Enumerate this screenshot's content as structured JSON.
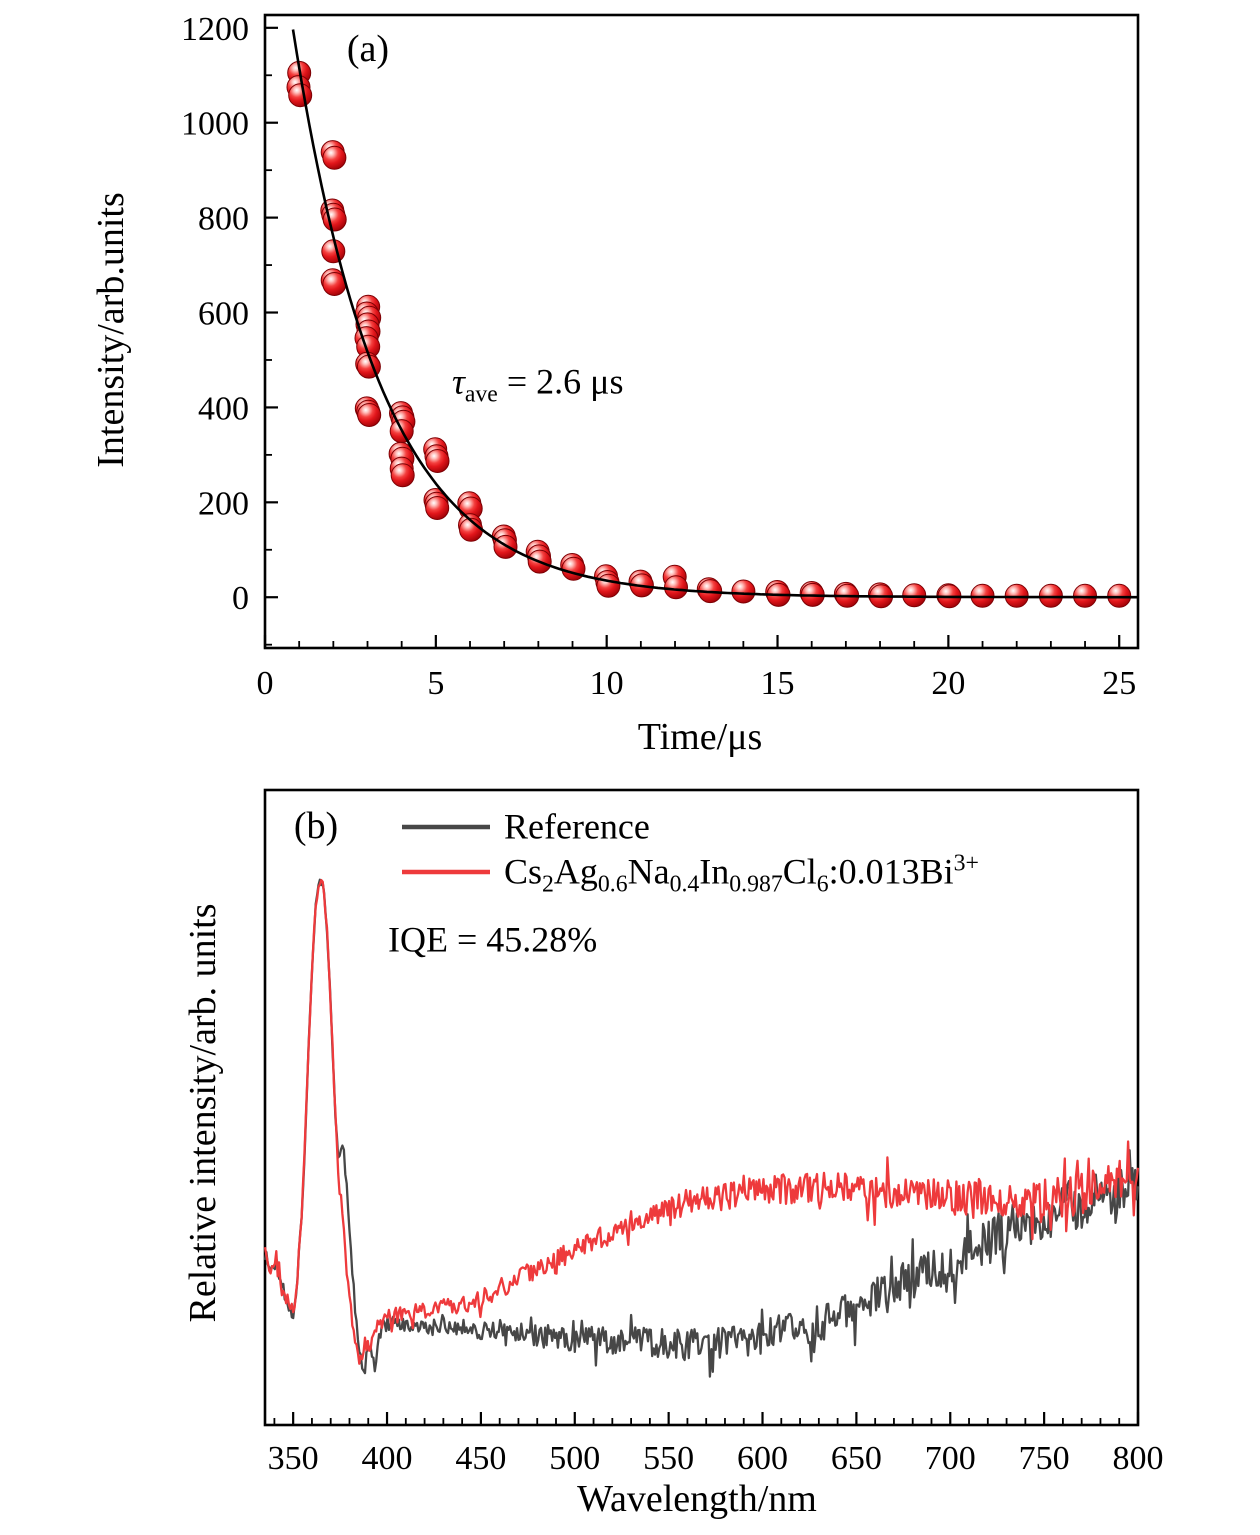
{
  "page": {
    "background": "#ffffff"
  },
  "chart_data": [
    {
      "id": "decay",
      "type": "scatter",
      "panel_label": "(a)",
      "xlabel": "Time/μs",
      "ylabel": "Intensity/arb.units",
      "xlim": [
        0,
        25.55
      ],
      "ylim": [
        -107,
        1227
      ],
      "x_major_ticks": [
        0,
        5,
        10,
        15,
        20,
        25
      ],
      "x_minor_step": 1,
      "y_major_ticks": [
        0,
        200,
        400,
        600,
        800,
        1000,
        1200
      ],
      "y_minor_step": 100,
      "grid": false,
      "annotation_tokens": [
        [
          "τ",
          "i"
        ],
        [
          "ave",
          "s"
        ],
        [
          " = 2.6 μs",
          "n"
        ]
      ],
      "annotation_plain": "tau_ave = 2.6 us",
      "marker_color": "#e2161b",
      "fit": {
        "A": 1640,
        "tau": 2.6,
        "color": "#000000"
      },
      "points": [
        [
          1.0,
          1105
        ],
        [
          0.98,
          1075
        ],
        [
          1.03,
          1058
        ],
        [
          1.98,
          938
        ],
        [
          2.03,
          926
        ],
        [
          1.97,
          815
        ],
        [
          2.0,
          806
        ],
        [
          2.04,
          796
        ],
        [
          2.0,
          729
        ],
        [
          1.98,
          668
        ],
        [
          2.03,
          660
        ],
        [
          3.02,
          612
        ],
        [
          2.98,
          598
        ],
        [
          3.05,
          589
        ],
        [
          3.0,
          575
        ],
        [
          3.03,
          560
        ],
        [
          2.97,
          546
        ],
        [
          3.02,
          528
        ],
        [
          2.99,
          492
        ],
        [
          3.04,
          486
        ],
        [
          2.98,
          398
        ],
        [
          3.02,
          391
        ],
        [
          3.05,
          384
        ],
        [
          3.98,
          388
        ],
        [
          4.02,
          379
        ],
        [
          4.05,
          370
        ],
        [
          4.0,
          350
        ],
        [
          3.97,
          302
        ],
        [
          4.02,
          292
        ],
        [
          4.0,
          271
        ],
        [
          4.03,
          257
        ],
        [
          4.98,
          312
        ],
        [
          5.02,
          297
        ],
        [
          5.05,
          287
        ],
        [
          4.99,
          205
        ],
        [
          5.02,
          197
        ],
        [
          5.04,
          188
        ],
        [
          5.98,
          198
        ],
        [
          6.02,
          187
        ],
        [
          6.0,
          152
        ],
        [
          6.03,
          142
        ],
        [
          6.99,
          128
        ],
        [
          7.02,
          120
        ],
        [
          7.04,
          106
        ],
        [
          7.98,
          96
        ],
        [
          8.02,
          86
        ],
        [
          8.04,
          75
        ],
        [
          8.99,
          68
        ],
        [
          9.03,
          60
        ],
        [
          9.98,
          44
        ],
        [
          10.02,
          32
        ],
        [
          10.05,
          24
        ],
        [
          10.99,
          33
        ],
        [
          11.03,
          25
        ],
        [
          11.99,
          43
        ],
        [
          12.03,
          21
        ],
        [
          12.99,
          17
        ],
        [
          13.03,
          13
        ],
        [
          14.0,
          12
        ],
        [
          14.99,
          11
        ],
        [
          15.03,
          5
        ],
        [
          16.0,
          9
        ],
        [
          16.03,
          5
        ],
        [
          17.0,
          7
        ],
        [
          17.04,
          3
        ],
        [
          18.0,
          6
        ],
        [
          18.03,
          2
        ],
        [
          19.0,
          4
        ],
        [
          20.0,
          4
        ],
        [
          20.03,
          2
        ],
        [
          21.0,
          3
        ],
        [
          22.0,
          3
        ],
        [
          23.0,
          3
        ],
        [
          24.0,
          3
        ],
        [
          25.0,
          3
        ]
      ]
    },
    {
      "id": "spectra",
      "type": "line",
      "panel_label": "(b)",
      "xlabel": "Wavelength/nm",
      "ylabel": "Relative intensity/arb. units",
      "xlim": [
        335,
        800
      ],
      "ylim": [
        0,
        1
      ],
      "x_major_ticks": [
        350,
        400,
        450,
        500,
        550,
        600,
        650,
        700,
        750,
        800
      ],
      "x_minor_step": 10,
      "y_ticks_visible": false,
      "grid": false,
      "annotation": "IQE = 45.28%",
      "legend_position": "top-left-inside",
      "series": [
        {
          "name": "Reference",
          "label_tokens": [
            [
              "Reference",
              "n"
            ]
          ],
          "color": "#474747",
          "noise": {
            "seed": 1337,
            "base": 0.012,
            "grow": 0.032
          },
          "anchors": [
            [
              335,
              0.27
            ],
            [
              338,
              0.24
            ],
            [
              341,
              0.26
            ],
            [
              344,
              0.22
            ],
            [
              347,
              0.2
            ],
            [
              350,
              0.18
            ],
            [
              352,
              0.22
            ],
            [
              354,
              0.3
            ],
            [
              356,
              0.42
            ],
            [
              358,
              0.58
            ],
            [
              360,
              0.72
            ],
            [
              362,
              0.82
            ],
            [
              364,
              0.855
            ],
            [
              366,
              0.85
            ],
            [
              368,
              0.78
            ],
            [
              370,
              0.66
            ],
            [
              372,
              0.52
            ],
            [
              374,
              0.42
            ],
            [
              376,
              0.44
            ],
            [
              378,
              0.4
            ],
            [
              380,
              0.3
            ],
            [
              382,
              0.22
            ],
            [
              384,
              0.15
            ],
            [
              386,
              0.1
            ],
            [
              388,
              0.08
            ],
            [
              390,
              0.14
            ],
            [
              392,
              0.1
            ],
            [
              394,
              0.09
            ],
            [
              396,
              0.14
            ],
            [
              398,
              0.16
            ],
            [
              400,
              0.16
            ],
            [
              410,
              0.155
            ],
            [
              420,
              0.15
            ],
            [
              430,
              0.16
            ],
            [
              440,
              0.155
            ],
            [
              450,
              0.15
            ],
            [
              460,
              0.15
            ],
            [
              470,
              0.145
            ],
            [
              480,
              0.14
            ],
            [
              490,
              0.14
            ],
            [
              500,
              0.135
            ],
            [
              510,
              0.135
            ],
            [
              520,
              0.13
            ],
            [
              530,
              0.135
            ],
            [
              540,
              0.13
            ],
            [
              550,
              0.13
            ],
            [
              560,
              0.125
            ],
            [
              570,
              0.13
            ],
            [
              580,
              0.13
            ],
            [
              590,
              0.135
            ],
            [
              600,
              0.14
            ],
            [
              610,
              0.145
            ],
            [
              620,
              0.15
            ],
            [
              630,
              0.16
            ],
            [
              640,
              0.17
            ],
            [
              650,
              0.185
            ],
            [
              660,
              0.2
            ],
            [
              670,
              0.215
            ],
            [
              680,
              0.23
            ],
            [
              690,
              0.245
            ],
            [
              700,
              0.26
            ],
            [
              710,
              0.275
            ],
            [
              720,
              0.29
            ],
            [
              730,
              0.305
            ],
            [
              740,
              0.32
            ],
            [
              750,
              0.33
            ],
            [
              760,
              0.34
            ],
            [
              770,
              0.35
            ],
            [
              780,
              0.355
            ],
            [
              790,
              0.36
            ],
            [
              800,
              0.37
            ]
          ]
        },
        {
          "name": "Cs2Ag0.6Na0.4In0.987Cl6:0.013Bi3+",
          "label_tokens": [
            [
              "Cs",
              "n"
            ],
            [
              "2",
              "s"
            ],
            [
              "Ag",
              "n"
            ],
            [
              "0.6",
              "s"
            ],
            [
              "Na",
              "n"
            ],
            [
              "0.4",
              "s"
            ],
            [
              "In",
              "n"
            ],
            [
              "0.987",
              "s"
            ],
            [
              "Cl",
              "n"
            ],
            [
              "6",
              "s"
            ],
            [
              ":0.013Bi",
              "n"
            ],
            [
              "3+",
              "u"
            ]
          ],
          "color": "#ee3a3c",
          "noise": {
            "seed": 2024,
            "base": 0.012,
            "grow": 0.022
          },
          "anchors": [
            [
              335,
              0.27
            ],
            [
              338,
              0.24
            ],
            [
              341,
              0.26
            ],
            [
              344,
              0.22
            ],
            [
              347,
              0.2
            ],
            [
              350,
              0.18
            ],
            [
              352,
              0.22
            ],
            [
              354,
              0.3
            ],
            [
              356,
              0.42
            ],
            [
              358,
              0.58
            ],
            [
              360,
              0.72
            ],
            [
              362,
              0.82
            ],
            [
              364,
              0.855
            ],
            [
              366,
              0.85
            ],
            [
              368,
              0.78
            ],
            [
              370,
              0.66
            ],
            [
              372,
              0.52
            ],
            [
              374,
              0.4
            ],
            [
              376,
              0.34
            ],
            [
              378,
              0.26
            ],
            [
              380,
              0.2
            ],
            [
              382,
              0.16
            ],
            [
              384,
              0.12
            ],
            [
              386,
              0.1
            ],
            [
              388,
              0.13
            ],
            [
              390,
              0.11
            ],
            [
              392,
              0.14
            ],
            [
              394,
              0.15
            ],
            [
              396,
              0.16
            ],
            [
              398,
              0.17
            ],
            [
              400,
              0.17
            ],
            [
              410,
              0.175
            ],
            [
              420,
              0.18
            ],
            [
              430,
              0.185
            ],
            [
              440,
              0.19
            ],
            [
              450,
              0.2
            ],
            [
              460,
              0.215
            ],
            [
              470,
              0.23
            ],
            [
              480,
              0.245
            ],
            [
              490,
              0.26
            ],
            [
              500,
              0.275
            ],
            [
              510,
              0.29
            ],
            [
              520,
              0.305
            ],
            [
              530,
              0.32
            ],
            [
              540,
              0.33
            ],
            [
              550,
              0.34
            ],
            [
              560,
              0.35
            ],
            [
              570,
              0.355
            ],
            [
              580,
              0.36
            ],
            [
              590,
              0.365
            ],
            [
              600,
              0.37
            ],
            [
              610,
              0.372
            ],
            [
              620,
              0.374
            ],
            [
              630,
              0.375
            ],
            [
              640,
              0.373
            ],
            [
              650,
              0.37
            ],
            [
              660,
              0.368
            ],
            [
              670,
              0.365
            ],
            [
              680,
              0.363
            ],
            [
              690,
              0.36
            ],
            [
              700,
              0.358
            ],
            [
              710,
              0.355
            ],
            [
              720,
              0.353
            ],
            [
              730,
              0.35
            ],
            [
              740,
              0.352
            ],
            [
              750,
              0.355
            ],
            [
              760,
              0.36
            ],
            [
              770,
              0.37
            ],
            [
              780,
              0.38
            ],
            [
              790,
              0.39
            ],
            [
              800,
              0.4
            ]
          ]
        }
      ]
    }
  ]
}
